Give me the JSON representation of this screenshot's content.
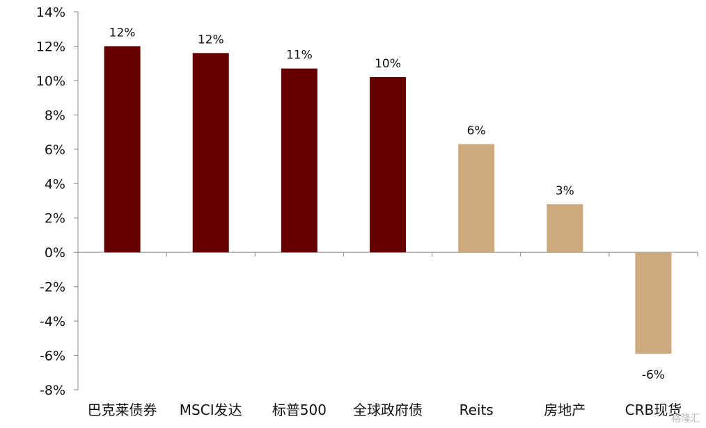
{
  "chart_data": {
    "type": "bar",
    "title": "",
    "xlabel": "",
    "ylabel": "",
    "categories": [
      "巴克莱债券",
      "MSCI发达",
      "标普500",
      "全球政府债",
      "Reits",
      "房地产",
      "CRB现货"
    ],
    "values": [
      12.0,
      11.6,
      10.7,
      10.2,
      6.3,
      2.8,
      -5.9
    ],
    "data_labels": [
      "12%",
      "12%",
      "11%",
      "10%",
      "6%",
      "3%",
      "-6%"
    ],
    "bar_colors": [
      "#660000",
      "#660000",
      "#660000",
      "#660000",
      "#CDAA7D",
      "#CDAA7D",
      "#CDAA7D"
    ],
    "ylim": [
      -8,
      14
    ],
    "yticks": [
      14,
      12,
      10,
      8,
      6,
      4,
      2,
      0,
      -2,
      -4,
      -6,
      -8
    ],
    "ytick_labels": [
      "14%",
      "12%",
      "10%",
      "8%",
      "6%",
      "4%",
      "2%",
      "0%",
      "-2%",
      "-4%",
      "-6%",
      "-8%"
    ],
    "grid": false,
    "legend": "none"
  },
  "watermark": "格隆汇"
}
